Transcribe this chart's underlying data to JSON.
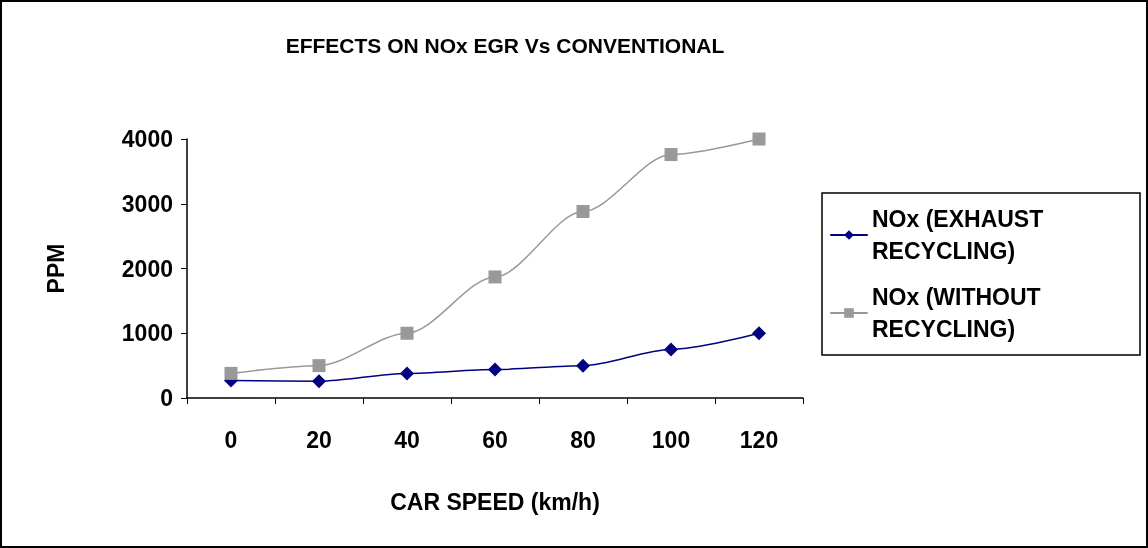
{
  "chart_data": {
    "type": "line",
    "title": "EFFECTS ON NOx EGR Vs CONVENTIONAL",
    "xlabel": "CAR SPEED (km/h)",
    "ylabel": "PPM",
    "categories": [
      "0",
      "20",
      "40",
      "60",
      "80",
      "100",
      "120"
    ],
    "series": [
      {
        "name": "NOx (EXHAUST RECYCLING)",
        "color": "#000080",
        "marker": "diamond",
        "values": [
          270,
          260,
          380,
          440,
          500,
          750,
          1000
        ]
      },
      {
        "name": "NOx (WITHOUT RECYCLING)",
        "color": "#999999",
        "marker": "square",
        "values": [
          380,
          500,
          1000,
          1870,
          2880,
          3760,
          4000
        ]
      }
    ],
    "ylim": [
      0,
      4000
    ],
    "yticks": [
      0,
      1000,
      2000,
      3000,
      4000
    ],
    "grid": false,
    "legend": "right",
    "line_style": "solid"
  }
}
